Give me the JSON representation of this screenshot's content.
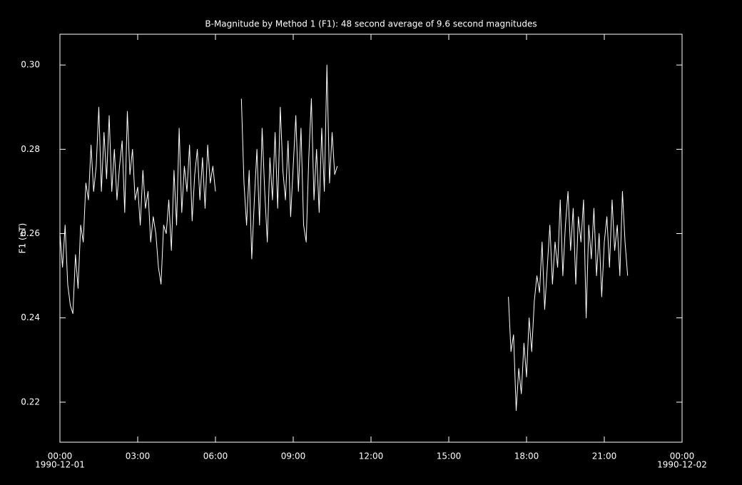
{
  "chart_data": {
    "type": "line",
    "title": "B-Magnitude by Method 1 (F1): 48 second average of 9.6 second magnitudes",
    "ylabel": "F1 (nT)",
    "color": "#ffffff",
    "xlim": [
      0,
      24
    ],
    "xticks": [
      {
        "value": 0,
        "label": "00:00"
      },
      {
        "value": 3,
        "label": "03:00"
      },
      {
        "value": 6,
        "label": "06:00"
      },
      {
        "value": 9,
        "label": "09:00"
      },
      {
        "value": 12,
        "label": "12:00"
      },
      {
        "value": 15,
        "label": "15:00"
      },
      {
        "value": 18,
        "label": "18:00"
      },
      {
        "value": 21,
        "label": "21:00"
      },
      {
        "value": 24,
        "label": "00:00"
      }
    ],
    "xtick_dates": [
      {
        "value": 0,
        "label": "1990-12-01"
      },
      {
        "value": 24,
        "label": "1990-12-02"
      }
    ],
    "ylim": [
      0.2105,
      0.3073
    ],
    "yticks": [
      0.22,
      0.24,
      0.26,
      0.28,
      {
        "value": 0.3,
        "label": "0.30"
      }
    ],
    "x": [
      0,
      0.1,
      0.2,
      0.3,
      0.4,
      0.5,
      0.6,
      0.7,
      0.8,
      0.9,
      1,
      1.1,
      1.2,
      1.3,
      1.4,
      1.5,
      1.6,
      1.7,
      1.8,
      1.9,
      2,
      2.1,
      2.2,
      2.3,
      2.4,
      2.5,
      2.6,
      2.7,
      2.8,
      2.9,
      3,
      3.1,
      3.2,
      3.3,
      3.4,
      3.5,
      3.6,
      3.7,
      3.8,
      3.9,
      4,
      4.1,
      4.2,
      4.3,
      4.4,
      4.5,
      4.6,
      4.7,
      4.8,
      4.9,
      5,
      5.1,
      5.2,
      5.3,
      5.4,
      5.5,
      5.6,
      5.7,
      5.8,
      5.9,
      6,
      6.5,
      7,
      7.1,
      7.2,
      7.3,
      7.4,
      7.5,
      7.6,
      7.7,
      7.8,
      7.9,
      8,
      8.1,
      8.2,
      8.3,
      8.4,
      8.5,
      8.6,
      8.7,
      8.8,
      8.9,
      9,
      9.1,
      9.2,
      9.3,
      9.4,
      9.5,
      9.6,
      9.7,
      9.8,
      9.9,
      10,
      10.1,
      10.2,
      10.3,
      10.4,
      10.5,
      10.6,
      10.7,
      14,
      17.3,
      17.4,
      17.5,
      17.6,
      17.7,
      17.8,
      17.9,
      18,
      18.1,
      18.2,
      18.3,
      18.4,
      18.5,
      18.6,
      18.7,
      18.8,
      18.9,
      19,
      19.1,
      19.2,
      19.3,
      19.4,
      19.5,
      19.6,
      19.7,
      19.8,
      19.9,
      20,
      20.1,
      20.2,
      20.3,
      20.4,
      20.5,
      20.6,
      20.7,
      20.8,
      20.9,
      21,
      21.1,
      21.2,
      21.3,
      21.4,
      21.5,
      21.6,
      21.7,
      21.8,
      21.9
    ],
    "values": [
      0.26,
      0.252,
      0.262,
      0.248,
      0.243,
      0.241,
      0.255,
      0.247,
      0.262,
      0.258,
      0.272,
      0.268,
      0.281,
      0.27,
      0.276,
      0.29,
      0.27,
      0.284,
      0.273,
      0.288,
      0.27,
      0.28,
      0.268,
      0.276,
      0.282,
      0.265,
      0.289,
      0.274,
      0.28,
      0.268,
      0.271,
      0.262,
      0.275,
      0.266,
      0.27,
      0.258,
      0.264,
      0.26,
      0.252,
      0.248,
      0.262,
      0.26,
      0.268,
      0.256,
      0.275,
      0.262,
      0.285,
      0.265,
      0.276,
      0.27,
      0.281,
      0.263,
      0.274,
      0.28,
      0.268,
      0.278,
      0.266,
      0.281,
      0.272,
      0.276,
      0.27,
      null,
      0.292,
      0.272,
      0.262,
      0.275,
      0.254,
      0.268,
      0.28,
      0.262,
      0.285,
      0.27,
      0.258,
      0.278,
      0.268,
      0.284,
      0.266,
      0.29,
      0.275,
      0.268,
      0.282,
      0.264,
      0.276,
      0.288,
      0.27,
      0.285,
      0.262,
      0.258,
      0.278,
      0.292,
      0.268,
      0.28,
      0.265,
      0.285,
      0.27,
      0.3,
      0.272,
      0.284,
      0.274,
      0.276,
      null,
      0.245,
      0.232,
      0.236,
      0.218,
      0.228,
      0.222,
      0.234,
      0.226,
      0.24,
      0.232,
      0.244,
      0.25,
      0.246,
      0.258,
      0.242,
      0.252,
      0.262,
      0.248,
      0.258,
      0.252,
      0.268,
      0.25,
      0.262,
      0.27,
      0.256,
      0.266,
      0.248,
      0.264,
      0.258,
      0.268,
      0.24,
      0.262,
      0.254,
      0.266,
      0.25,
      0.26,
      0.245,
      0.258,
      0.264,
      0.252,
      0.268,
      0.256,
      0.262,
      0.25,
      0.27,
      0.258,
      0.25
    ]
  }
}
